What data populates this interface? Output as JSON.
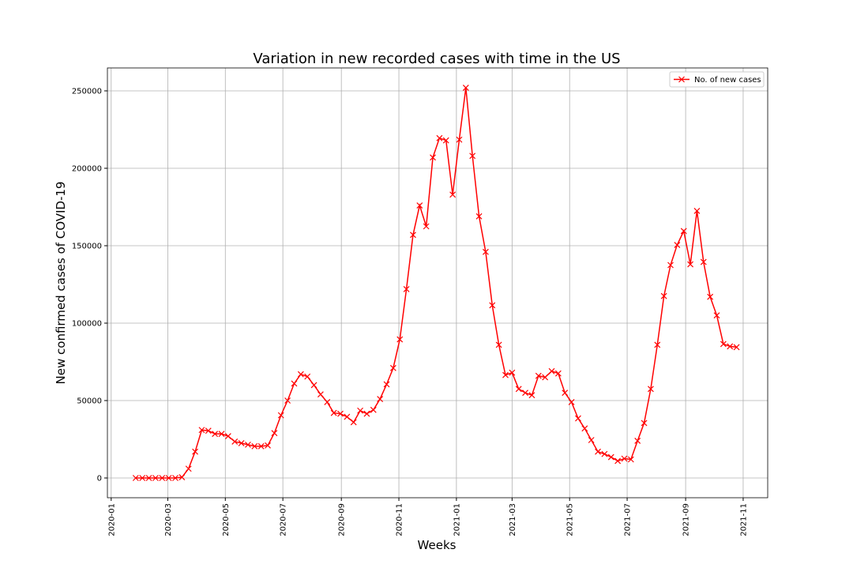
{
  "chart_data": {
    "type": "line",
    "title": "Variation in new recorded cases with time in the US",
    "x_label": "Weeks",
    "y_label": "New confirmed cases of COVID-19",
    "x": [
      26,
      33,
      40,
      47,
      54,
      61,
      68,
      75,
      82,
      89,
      96,
      103,
      110,
      117,
      124,
      131,
      138,
      145,
      152,
      159,
      166,
      173,
      180,
      187,
      194,
      201,
      208,
      215,
      222,
      229,
      236,
      243,
      250,
      257,
      264,
      271,
      278,
      285,
      292,
      299,
      306,
      313,
      320,
      327,
      334,
      341,
      348,
      355,
      362,
      369,
      376,
      383,
      390,
      397,
      404,
      411,
      418,
      425,
      432,
      439,
      446,
      453,
      460,
      467,
      474,
      481,
      488,
      495,
      502,
      509,
      516,
      523,
      530,
      537,
      544,
      551,
      558,
      565,
      572,
      579,
      586,
      593,
      600,
      607,
      614,
      621,
      628,
      635,
      642,
      649,
      656,
      663
    ],
    "series": [
      {
        "name": "No. of new cases",
        "color": "#ff0000",
        "values": [
          0,
          0,
          0,
          0,
          0,
          0,
          0,
          500,
          6000,
          17000,
          31000,
          30500,
          28500,
          28500,
          27000,
          23500,
          22500,
          21500,
          20500,
          20500,
          21000,
          29000,
          40500,
          50000,
          61000,
          67000,
          65500,
          60000,
          54000,
          49000,
          42000,
          41500,
          39500,
          36000,
          43500,
          41500,
          44000,
          51000,
          60500,
          71000,
          89500,
          122000,
          157000,
          176000,
          162500,
          207000,
          219500,
          218000,
          183000,
          218500,
          252000,
          208000,
          169000,
          146000,
          111500,
          86000,
          66500,
          68000,
          57500,
          55000,
          53500,
          66000,
          65000,
          69000,
          67500,
          55000,
          49000,
          38500,
          32000,
          24500,
          17000,
          15500,
          13500,
          11000,
          12500,
          12000,
          24000,
          35500,
          57500,
          86000,
          117500,
          137500,
          150500,
          159500,
          138000,
          172500,
          139500,
          117000,
          105000,
          86500,
          85000,
          84500
        ]
      }
    ],
    "xlim": [
      -4,
      696
    ],
    "ylim": [
      -12750,
      264800
    ],
    "xticks": [
      {
        "value": 0,
        "label": "2020-01"
      },
      {
        "value": 60,
        "label": "2020-03"
      },
      {
        "value": 121,
        "label": "2020-05"
      },
      {
        "value": 182,
        "label": "2020-07"
      },
      {
        "value": 244,
        "label": "2020-09"
      },
      {
        "value": 305,
        "label": "2020-11"
      },
      {
        "value": 366,
        "label": "2021-01"
      },
      {
        "value": 425,
        "label": "2021-03"
      },
      {
        "value": 486,
        "label": "2021-05"
      },
      {
        "value": 547,
        "label": "2021-07"
      },
      {
        "value": 609,
        "label": "2021-09"
      },
      {
        "value": 670,
        "label": "2021-11"
      }
    ],
    "yticks": [
      0,
      50000,
      100000,
      150000,
      200000,
      250000
    ],
    "grid": true,
    "legend": "upper right",
    "marker": "x"
  }
}
